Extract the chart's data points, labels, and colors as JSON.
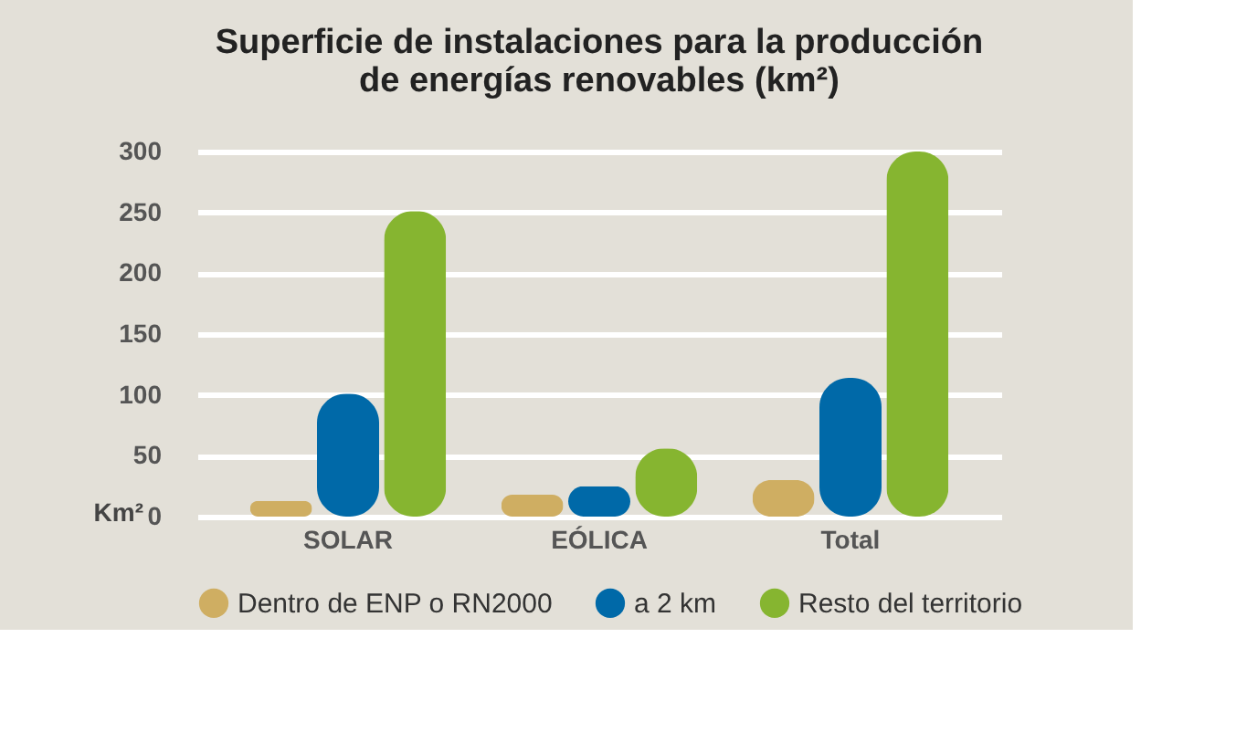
{
  "chart_data": {
    "type": "bar",
    "title": [
      "Superficie de instalaciones para la producción",
      "de energías renovables (km²)"
    ],
    "ylabel": "Km²",
    "categories": [
      "SOLAR",
      "EÓLICA",
      "Total"
    ],
    "series": [
      {
        "name": "Dentro de ENP o RN2000",
        "color": "#cfae62",
        "values": [
          13,
          18,
          30
        ]
      },
      {
        "name": "a 2 km",
        "color": "#0069a8",
        "values": [
          101,
          25,
          114
        ]
      },
      {
        "name": "Resto del territorio",
        "color": "#86b530",
        "values": [
          251,
          56,
          300
        ]
      }
    ],
    "ylim": [
      0,
      300
    ],
    "yticks": [
      0,
      50,
      100,
      150,
      200,
      250,
      300
    ],
    "grid": "y",
    "legend": "bottom"
  }
}
